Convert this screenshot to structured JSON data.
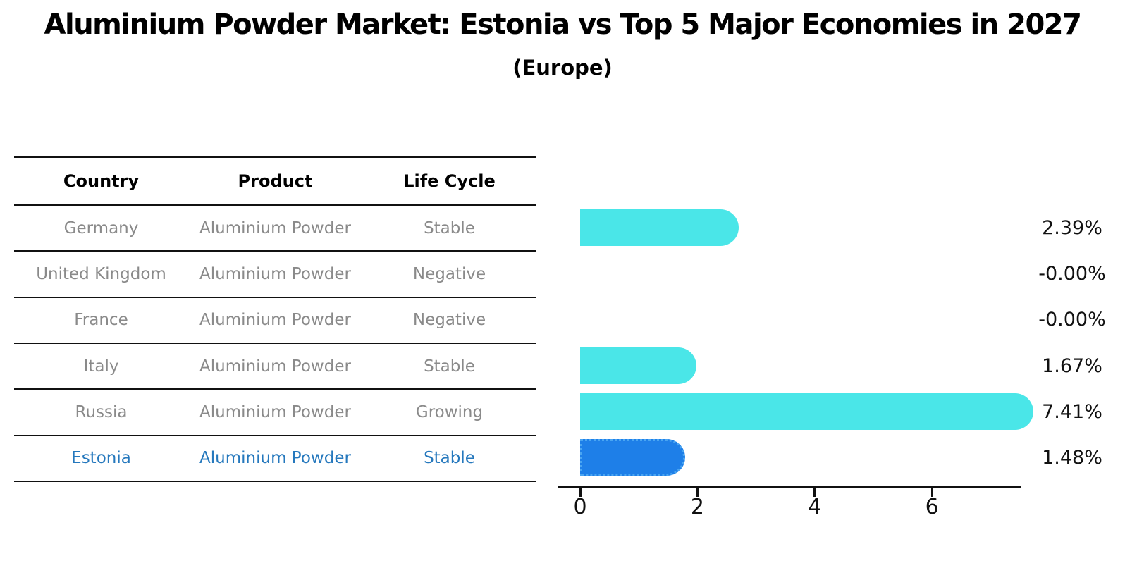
{
  "header": {
    "title": "Aluminium Powder Market: Estonia vs Top 5 Major Economies in 2027",
    "subtitle": "(Europe)"
  },
  "table": {
    "columns": [
      "Country",
      "Product",
      "Life Cycle"
    ],
    "rows": [
      {
        "country": "Germany",
        "product": "Aluminium Powder",
        "life_cycle": "Stable",
        "highlight": false
      },
      {
        "country": "United Kingdom",
        "product": "Aluminium Powder",
        "life_cycle": "Negative",
        "highlight": false
      },
      {
        "country": "France",
        "product": "Aluminium Powder",
        "life_cycle": "Negative",
        "highlight": false
      },
      {
        "country": "Italy",
        "product": "Aluminium Powder",
        "life_cycle": "Stable",
        "highlight": false
      },
      {
        "country": "Russia",
        "product": "Aluminium Powder",
        "life_cycle": "Growing",
        "highlight": false
      },
      {
        "country": "Estonia",
        "product": "Aluminium Powder",
        "life_cycle": "Stable",
        "highlight": true
      }
    ]
  },
  "chart_data": {
    "type": "bar",
    "orientation": "horizontal",
    "title": "Aluminium Powder Market: Estonia vs Top 5 Major Economies in 2027",
    "subtitle": "(Europe)",
    "categories": [
      "Germany",
      "United Kingdom",
      "France",
      "Italy",
      "Russia",
      "Estonia"
    ],
    "values": [
      2.39,
      -0.0,
      -0.0,
      1.67,
      7.41,
      1.48
    ],
    "value_labels": [
      "2.39%",
      "-0.00%",
      "-0.00%",
      "1.67%",
      "7.41%",
      "1.48%"
    ],
    "x_ticks": [
      0,
      2,
      4,
      6
    ],
    "xlim": [
      0,
      7.6
    ],
    "grid": false,
    "legend": false,
    "bar_color": "#4ae6e8",
    "highlight_bar_color": "#1e7fe8",
    "highlight_index": 5,
    "highlight_style": "dotted-border"
  }
}
